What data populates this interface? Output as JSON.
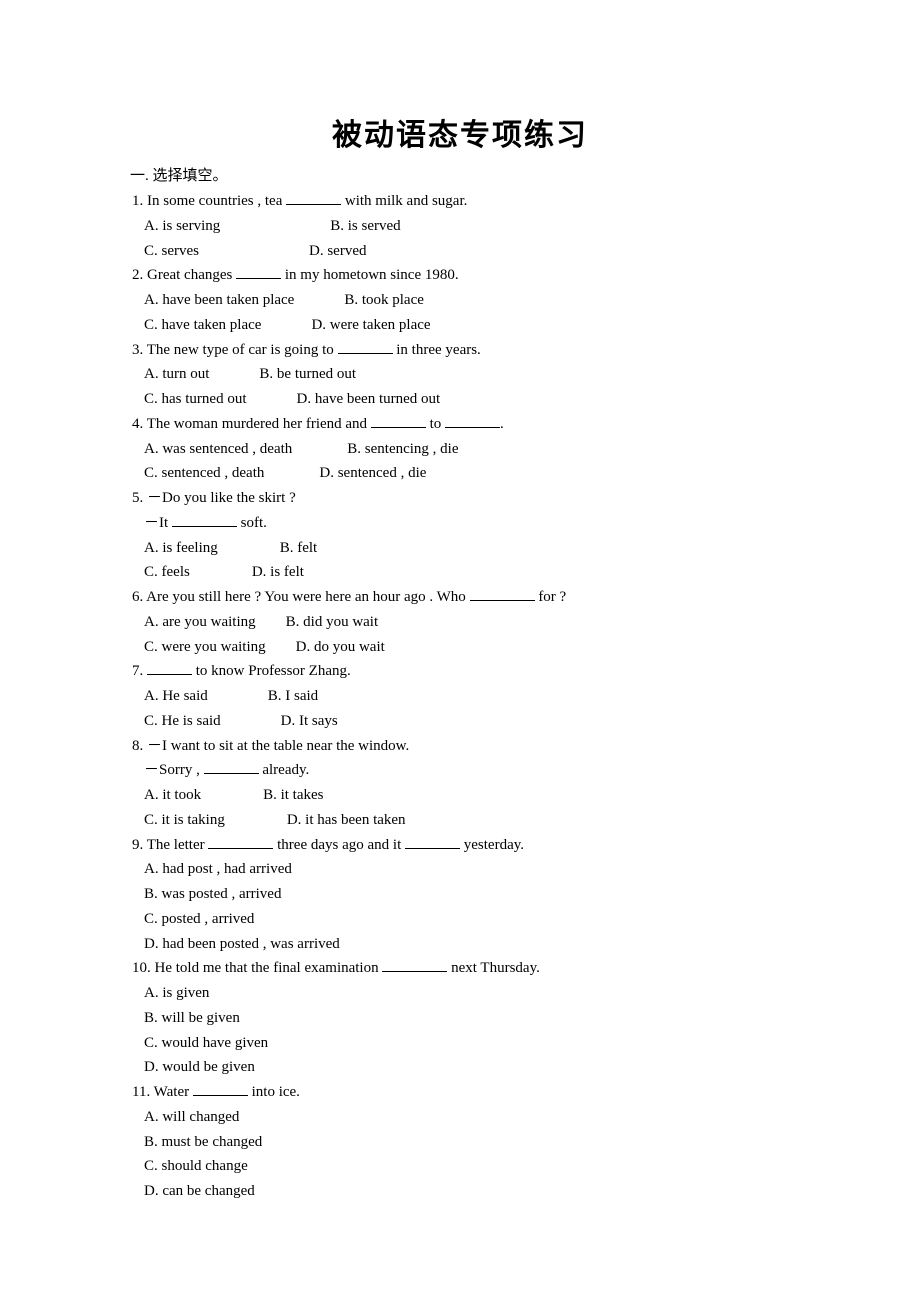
{
  "title": "被动语态专项练习",
  "section_header": "一. 选择填空。",
  "questions": [
    {
      "num": "1.",
      "prefix": "In some countries , tea ",
      "suffix": " with milk and sugar.",
      "blank_class": "blank-med",
      "opts": [
        [
          "A. is serving",
          "B. is served"
        ],
        [
          "C. serves",
          "D. served"
        ]
      ],
      "gaps": [
        110,
        null
      ]
    },
    {
      "num": "2.",
      "prefix": "Great changes ",
      "suffix": " in my hometown since 1980.",
      "blank_class": "blank-short",
      "opts": [
        [
          "A. have been taken place",
          "B. took place"
        ],
        [
          "C. have taken place",
          "D. were taken place"
        ]
      ],
      "gaps": [
        50,
        null
      ]
    },
    {
      "num": "3.",
      "prefix": "The new type of car is going to ",
      "suffix": " in three years.",
      "blank_class": "blank-med",
      "opts": [
        [
          "A. turn out",
          "B. be turned out"
        ],
        [
          "C. has turned out",
          "D. have been turned out"
        ]
      ],
      "gaps": [
        50,
        null
      ]
    },
    {
      "num": "4.",
      "prefix1": "The woman murdered her friend and ",
      "mid": " to ",
      "suffix1": ".",
      "blank_class": "blank-med",
      "opts": [
        [
          "A. was sentenced , death",
          "B. sentencing , die"
        ],
        [
          "C. sentenced , death",
          "D. sentenced , die"
        ]
      ],
      "gaps": [
        55,
        null
      ],
      "two_blanks_with_mid": true
    },
    {
      "num": "5.",
      "dialogue": [
        "－Do you like the skirt ?",
        {
          "pre": "－It ",
          "post": " soft.",
          "blank_class": "blank-long"
        }
      ],
      "opts": [
        [
          "A. is feeling",
          "B. felt"
        ],
        [
          "C. feels",
          "D. is felt"
        ]
      ],
      "gaps": [
        62,
        null
      ]
    },
    {
      "num": "6.",
      "prefix": "Are you still here ? You were here an hour ago . Who ",
      "suffix": " for ?",
      "blank_class": "blank-long",
      "opts": [
        [
          "A. are you waiting",
          "B. did you wait"
        ],
        [
          "C. were you waiting",
          "D. do you wait"
        ]
      ],
      "gaps": [
        30,
        null
      ]
    },
    {
      "num": "7.",
      "suffix": " to know Professor Zhang.",
      "blank_first": true,
      "blank_class": "blank-short",
      "opts": [
        [
          "A. He said",
          "B. I said"
        ],
        [
          "C. He is said",
          "D. It says"
        ]
      ],
      "gaps": [
        60,
        null
      ]
    },
    {
      "num": "8.",
      "dialogue": [
        "－I want to sit at the table near the window.",
        {
          "pre": "－Sorry , ",
          "post": " already.",
          "blank_class": "blank-med"
        }
      ],
      "opts": [
        [
          "A. it took",
          "B. it takes"
        ],
        [
          "C. it is taking",
          "D. it has been taken"
        ]
      ],
      "gaps": [
        62,
        null
      ]
    },
    {
      "num": "9.",
      "prefix1": "The letter ",
      "mid": " three days ago and it ",
      "suffix1": " yesterday.",
      "blank_class_a": "blank-long",
      "blank_class_b": "blank-med",
      "two_blanks_with_mid": true,
      "opts_single": [
        "A. had post , had arrived",
        "B. was posted , arrived",
        "C. posted , arrived",
        "D. had been posted , was arrived"
      ]
    },
    {
      "num": "10.",
      "prefix": "He told me that the final examination ",
      "suffix": " next Thursday.",
      "blank_class": "blank-long",
      "opts_single": [
        "A. is given",
        "B. will be given",
        "C. would have given",
        "D. would be given"
      ]
    },
    {
      "num": "11.",
      "prefix": "Water ",
      "suffix": " into ice.",
      "blank_class": "blank-med",
      "opts_single": [
        "A. will changed",
        "B. must be changed",
        "C. should change",
        "D. can be changed"
      ]
    }
  ]
}
